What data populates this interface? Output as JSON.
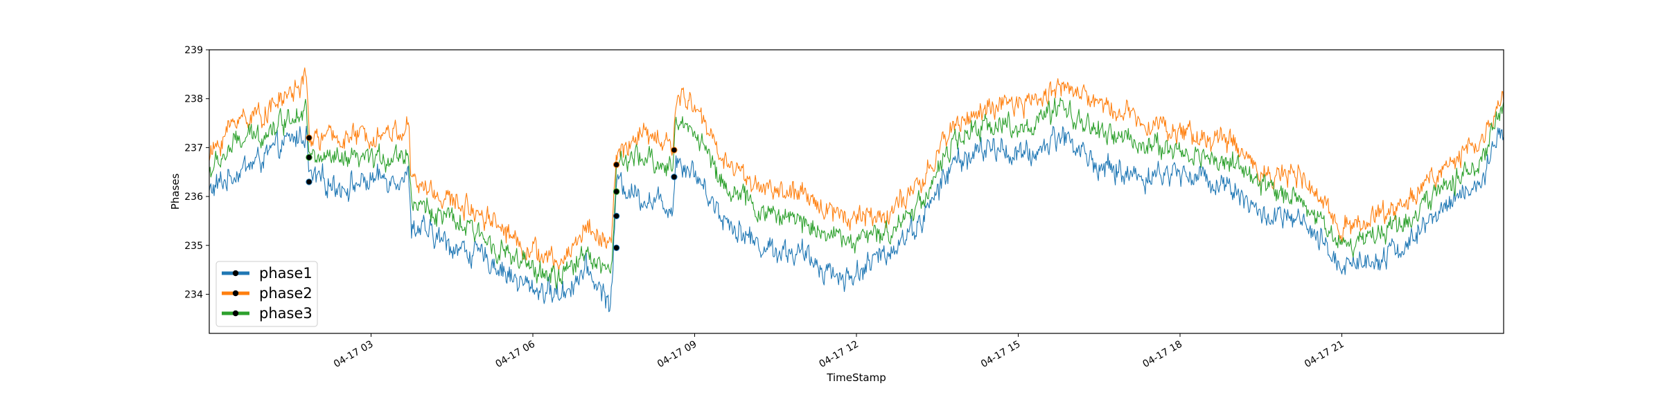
{
  "chart_data": {
    "type": "line",
    "title": "",
    "xlabel": "TimeStamp",
    "ylabel": "Phases",
    "ylim": [
      233.2,
      239.0
    ],
    "yticks": [
      234,
      235,
      236,
      237,
      238,
      239
    ],
    "xlim_hours": [
      0.0,
      24.0
    ],
    "xticks": [
      {
        "hour": 3,
        "label": "04-17 03"
      },
      {
        "hour": 6,
        "label": "04-17 06"
      },
      {
        "hour": 9,
        "label": "04-17 09"
      },
      {
        "hour": 12,
        "label": "04-17 12"
      },
      {
        "hour": 15,
        "label": "04-17 15"
      },
      {
        "hour": 18,
        "label": "04-17 18"
      },
      {
        "hour": 21,
        "label": "04-17 21"
      }
    ],
    "grid": false,
    "legend": "lower-left",
    "series": [
      {
        "name": "phase1",
        "color": "#1f77b4",
        "noise": 0.22,
        "keypoints": [
          [
            0.0,
            236.1
          ],
          [
            0.5,
            236.5
          ],
          [
            1.0,
            236.8
          ],
          [
            1.6,
            237.2
          ],
          [
            1.8,
            237.3
          ],
          [
            1.85,
            236.4
          ],
          [
            2.5,
            236.2
          ],
          [
            3.3,
            236.4
          ],
          [
            3.7,
            236.4
          ],
          [
            3.75,
            235.4
          ],
          [
            4.5,
            235.0
          ],
          [
            5.2,
            234.7
          ],
          [
            5.8,
            234.2
          ],
          [
            6.5,
            234.0
          ],
          [
            7.0,
            234.5
          ],
          [
            7.45,
            233.8
          ],
          [
            7.55,
            236.3
          ],
          [
            8.0,
            236.0
          ],
          [
            8.6,
            235.8
          ],
          [
            8.65,
            236.8
          ],
          [
            9.0,
            236.5
          ],
          [
            9.5,
            235.6
          ],
          [
            10.2,
            235.0
          ],
          [
            11.0,
            234.8
          ],
          [
            11.8,
            234.3
          ],
          [
            12.5,
            234.8
          ],
          [
            13.2,
            235.5
          ],
          [
            13.8,
            236.7
          ],
          [
            14.5,
            237.0
          ],
          [
            15.2,
            236.8
          ],
          [
            15.8,
            237.3
          ],
          [
            16.5,
            236.6
          ],
          [
            17.3,
            236.4
          ],
          [
            18.0,
            236.5
          ],
          [
            19.0,
            236.2
          ],
          [
            19.5,
            235.6
          ],
          [
            20.2,
            235.5
          ],
          [
            21.0,
            234.6
          ],
          [
            21.5,
            234.7
          ],
          [
            22.2,
            235.0
          ],
          [
            23.0,
            235.9
          ],
          [
            23.6,
            236.3
          ],
          [
            24.0,
            237.4
          ]
        ]
      },
      {
        "name": "phase2",
        "color": "#ff7f0e",
        "noise": 0.2,
        "keypoints": [
          [
            0.0,
            236.8
          ],
          [
            0.5,
            237.6
          ],
          [
            1.0,
            237.7
          ],
          [
            1.6,
            238.2
          ],
          [
            1.8,
            238.4
          ],
          [
            1.85,
            237.2
          ],
          [
            2.5,
            237.2
          ],
          [
            3.3,
            237.3
          ],
          [
            3.7,
            237.4
          ],
          [
            3.75,
            236.3
          ],
          [
            4.5,
            235.9
          ],
          [
            5.2,
            235.6
          ],
          [
            5.8,
            235.0
          ],
          [
            6.5,
            234.6
          ],
          [
            7.0,
            235.4
          ],
          [
            7.45,
            235.0
          ],
          [
            7.55,
            236.8
          ],
          [
            8.0,
            237.3
          ],
          [
            8.6,
            237.0
          ],
          [
            8.65,
            238.0
          ],
          [
            9.0,
            237.9
          ],
          [
            9.5,
            236.8
          ],
          [
            10.2,
            236.2
          ],
          [
            11.0,
            236.0
          ],
          [
            11.8,
            235.6
          ],
          [
            12.5,
            235.6
          ],
          [
            13.2,
            236.2
          ],
          [
            13.8,
            237.5
          ],
          [
            14.5,
            237.8
          ],
          [
            15.2,
            237.9
          ],
          [
            15.8,
            238.3
          ],
          [
            16.5,
            237.9
          ],
          [
            17.3,
            237.6
          ],
          [
            18.0,
            237.3
          ],
          [
            19.0,
            237.1
          ],
          [
            19.5,
            236.5
          ],
          [
            20.2,
            236.4
          ],
          [
            21.0,
            235.4
          ],
          [
            21.5,
            235.5
          ],
          [
            22.2,
            235.9
          ],
          [
            23.0,
            236.7
          ],
          [
            23.6,
            237.1
          ],
          [
            24.0,
            238.1
          ]
        ]
      },
      {
        "name": "phase3",
        "color": "#2ca02c",
        "noise": 0.2,
        "keypoints": [
          [
            0.0,
            236.5
          ],
          [
            0.5,
            237.1
          ],
          [
            1.0,
            237.3
          ],
          [
            1.6,
            237.7
          ],
          [
            1.8,
            237.9
          ],
          [
            1.85,
            236.8
          ],
          [
            2.5,
            236.7
          ],
          [
            3.3,
            236.8
          ],
          [
            3.7,
            236.9
          ],
          [
            3.75,
            235.9
          ],
          [
            4.5,
            235.5
          ],
          [
            5.2,
            235.1
          ],
          [
            5.8,
            234.6
          ],
          [
            6.5,
            234.3
          ],
          [
            7.0,
            234.9
          ],
          [
            7.45,
            234.4
          ],
          [
            7.55,
            236.6
          ],
          [
            8.0,
            236.8
          ],
          [
            8.6,
            236.6
          ],
          [
            8.65,
            237.5
          ],
          [
            9.0,
            237.4
          ],
          [
            9.5,
            236.3
          ],
          [
            10.2,
            235.7
          ],
          [
            11.0,
            235.5
          ],
          [
            11.8,
            235.1
          ],
          [
            12.5,
            235.2
          ],
          [
            13.2,
            235.9
          ],
          [
            13.8,
            237.1
          ],
          [
            14.5,
            237.5
          ],
          [
            15.2,
            237.4
          ],
          [
            15.8,
            237.8
          ],
          [
            16.5,
            237.3
          ],
          [
            17.3,
            237.1
          ],
          [
            18.0,
            236.9
          ],
          [
            19.0,
            236.7
          ],
          [
            19.5,
            236.2
          ],
          [
            20.2,
            236.0
          ],
          [
            21.0,
            235.0
          ],
          [
            21.5,
            235.2
          ],
          [
            22.2,
            235.5
          ],
          [
            23.0,
            236.3
          ],
          [
            23.6,
            236.7
          ],
          [
            24.0,
            237.9
          ]
        ]
      }
    ],
    "markers": [
      {
        "series": "phase1",
        "x": 1.85,
        "y": 236.3
      },
      {
        "series": "phase2",
        "x": 1.85,
        "y": 237.2
      },
      {
        "series": "phase3",
        "x": 1.85,
        "y": 236.8
      },
      {
        "series": "phase1",
        "x": 7.55,
        "y": 234.95
      },
      {
        "series": "phase1",
        "x": 7.55,
        "y": 235.6
      },
      {
        "series": "phase3",
        "x": 7.55,
        "y": 236.1
      },
      {
        "series": "phase2",
        "x": 7.55,
        "y": 236.65
      },
      {
        "series": "phase1",
        "x": 8.62,
        "y": 236.4
      },
      {
        "series": "phase2",
        "x": 8.62,
        "y": 236.95
      }
    ]
  }
}
